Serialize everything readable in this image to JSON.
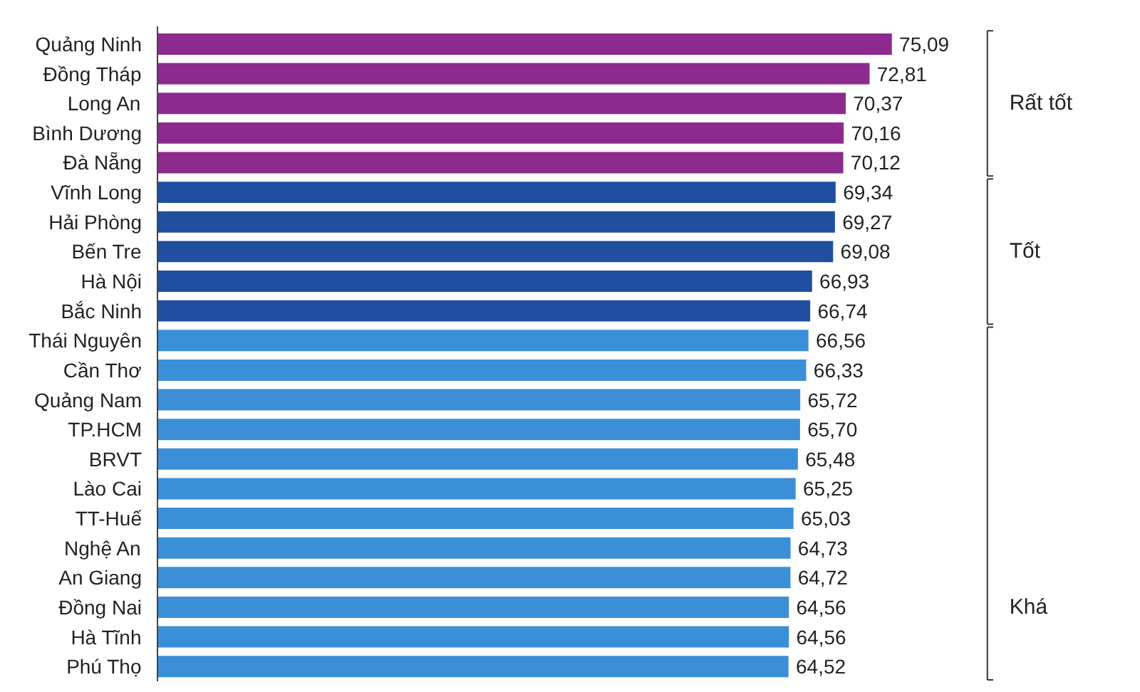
{
  "chart_data": {
    "type": "bar",
    "orientation": "horizontal",
    "categories": [
      "Quảng Ninh",
      "Đồng Tháp",
      "Long An",
      "Bình Dương",
      "Đà Nẵng",
      "Vĩnh Long",
      "Hải Phòng",
      "Bến Tre",
      "Hà Nội",
      "Bắc Ninh",
      "Thái Nguyên",
      "Cần Thơ",
      "Quảng Nam",
      "TP.HCM",
      "BRVT",
      "Lào Cai",
      "TT-Huế",
      "Nghệ An",
      "An Giang",
      "Đồng Nai",
      "Hà Tĩnh",
      "Phú Thọ"
    ],
    "values": [
      75.09,
      72.81,
      70.37,
      70.16,
      70.12,
      69.34,
      69.27,
      69.08,
      66.93,
      66.74,
      66.56,
      66.33,
      65.72,
      65.7,
      65.48,
      65.25,
      65.03,
      64.73,
      64.72,
      64.56,
      64.56,
      64.52
    ],
    "value_labels": [
      "75,09",
      "72,81",
      "70,37",
      "70,16",
      "70,12",
      "69,34",
      "69,27",
      "69,08",
      "66,93",
      "66,74",
      "66,56",
      "66,33",
      "65,72",
      "65,70",
      "65,48",
      "65,25",
      "65,03",
      "64,73",
      "64,72",
      "64,56",
      "64,56",
      "64,52"
    ],
    "colors": [
      "#8c2a8e",
      "#8c2a8e",
      "#8c2a8e",
      "#8c2a8e",
      "#8c2a8e",
      "#1f4f9e",
      "#1f4f9e",
      "#1f4f9e",
      "#1f4f9e",
      "#1f4f9e",
      "#3b8fd8",
      "#3b8fd8",
      "#3b8fd8",
      "#3b8fd8",
      "#3b8fd8",
      "#3b8fd8",
      "#3b8fd8",
      "#3b8fd8",
      "#3b8fd8",
      "#3b8fd8",
      "#3b8fd8",
      "#3b8fd8"
    ],
    "annotations": [
      "Rất tốt",
      "Tốt",
      "Khá"
    ],
    "grid": false
  }
}
